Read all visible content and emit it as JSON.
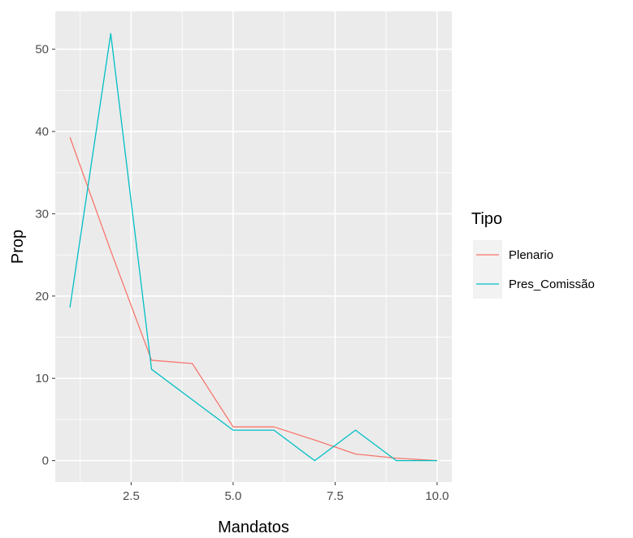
{
  "chart_data": {
    "type": "line",
    "title": "",
    "xlabel": "Mandatos",
    "ylabel": "Prop",
    "xlim": [
      0.64,
      10.36
    ],
    "ylim": [
      -2.6,
      54.6
    ],
    "xticks": [
      2.5,
      5.0,
      7.5,
      10.0
    ],
    "xtick_labels": [
      "2.5",
      "5.0",
      "7.5",
      "10.0"
    ],
    "yticks": [
      0,
      10,
      20,
      30,
      40,
      50
    ],
    "ytick_labels": [
      "0",
      "10",
      "20",
      "30",
      "40",
      "50"
    ],
    "x": [
      1,
      2,
      3,
      4,
      5,
      6,
      7,
      8,
      9,
      10
    ],
    "series": [
      {
        "name": "Plenario",
        "color": "#F8766D",
        "values": [
          39.3,
          25.5,
          12.2,
          11.8,
          4.1,
          4.1,
          2.5,
          0.8,
          0.3,
          0.0
        ]
      },
      {
        "name": "Pres_Comissão",
        "color": "#00BFC4",
        "values": [
          18.6,
          51.9,
          11.1,
          7.4,
          3.7,
          3.7,
          0.0,
          3.7,
          0.0,
          0.0
        ]
      }
    ],
    "legend": {
      "title": "Tipo",
      "position": "right"
    },
    "grid": true,
    "panel_background": "#EBEBEB"
  }
}
